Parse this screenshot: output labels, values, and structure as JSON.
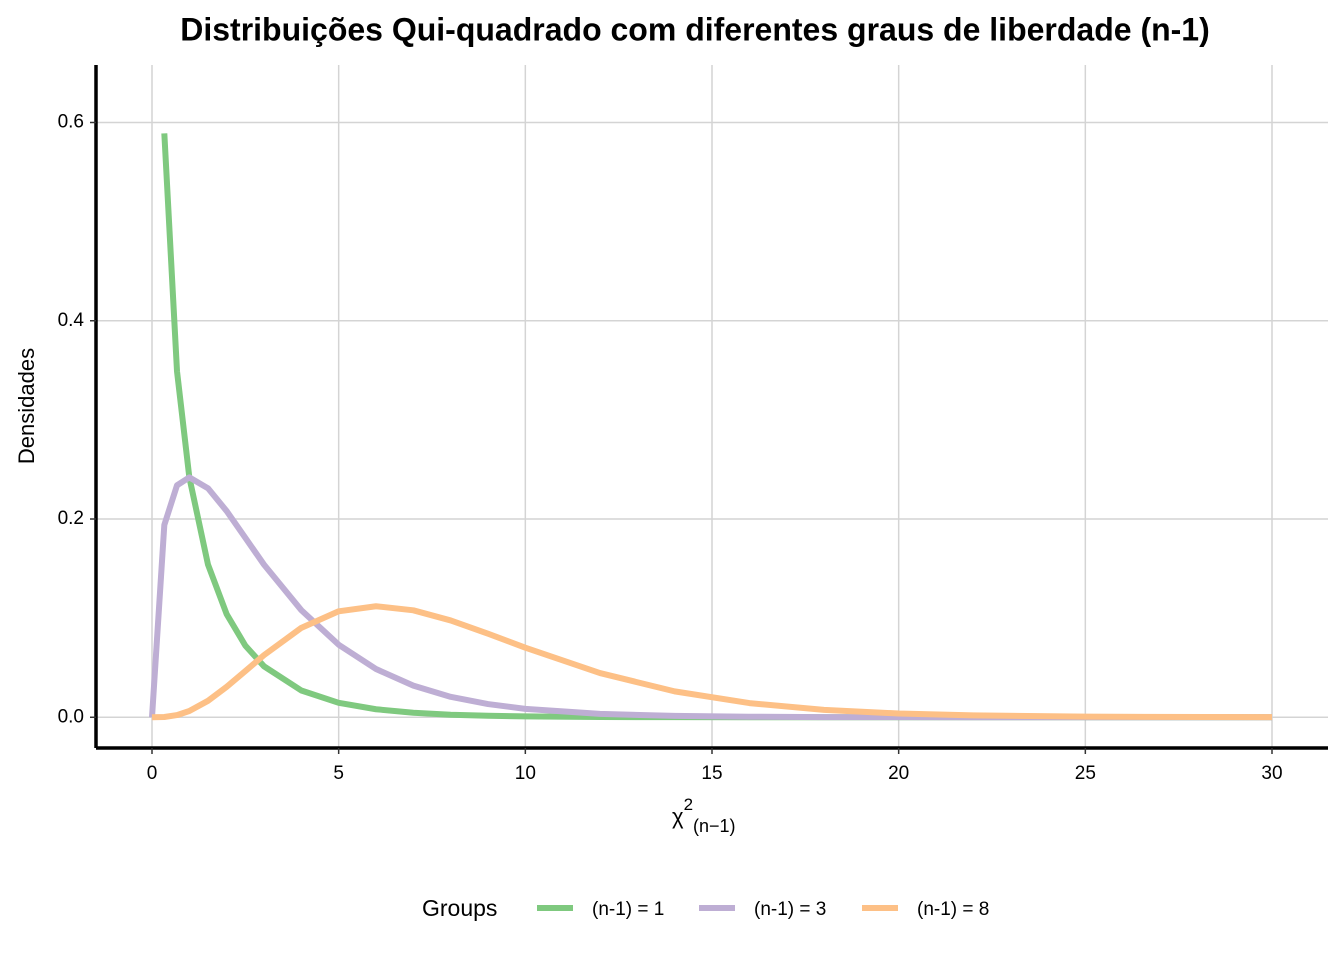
{
  "chart_data": {
    "type": "line",
    "title": "Distribuições Qui-quadrado com diferentes graus de liberdade (n-1)",
    "x_label": {
      "base": "χ",
      "sup": "2",
      "sub": "(n−1)"
    },
    "y_label": "Densidades",
    "legend_title": "Groups",
    "legend_position": "bottom",
    "grid": true,
    "x": [
      0,
      0.33,
      0.67,
      1,
      1.5,
      2,
      2.5,
      3,
      4,
      5,
      6,
      7,
      8,
      9,
      10,
      12,
      14,
      16,
      18,
      20,
      22,
      25,
      30
    ],
    "series": [
      {
        "name": "(n-1) = 1",
        "color": "#7fc97f",
        "values": [
          null,
          0.589,
          0.349,
          0.242,
          0.154,
          0.104,
          0.0723,
          0.0514,
          0.027,
          0.0146,
          0.0081,
          0.0046,
          0.0026,
          0.0015,
          0.00085,
          0.00028,
          0.0001,
          0,
          0,
          0,
          0,
          0,
          0
        ]
      },
      {
        "name": "(n-1) = 3",
        "color": "#beaed4",
        "values": [
          0,
          0.194,
          0.234,
          0.242,
          0.231,
          0.208,
          0.181,
          0.154,
          0.108,
          0.0732,
          0.0487,
          0.0319,
          0.0206,
          0.0133,
          0.0085,
          0.0034,
          0.0014,
          0.00054,
          0.0002,
          0.0001,
          0,
          0,
          0
        ]
      },
      {
        "name": "(n-1) = 8",
        "color": "#fdc086",
        "values": [
          0,
          0.0003,
          0.0022,
          0.0063,
          0.0166,
          0.0307,
          0.0466,
          0.0627,
          0.0902,
          0.1069,
          0.112,
          0.1079,
          0.0977,
          0.0843,
          0.0702,
          0.0446,
          0.0261,
          0.0143,
          0.0075,
          0.0038,
          0.0019,
          0.0006,
          0.0001
        ]
      }
    ],
    "xlim": [
      -1.5,
      31.5
    ],
    "xticks": [
      0,
      5,
      10,
      15,
      20,
      25,
      30
    ],
    "ylim": [
      -0.031,
      0.658
    ],
    "yticks": [
      {
        "value": 0,
        "label": "0.0"
      },
      {
        "value": 0.2,
        "label": "0.2"
      },
      {
        "value": 0.4,
        "label": "0.4"
      },
      {
        "value": 0.6,
        "label": "0.6"
      }
    ]
  }
}
